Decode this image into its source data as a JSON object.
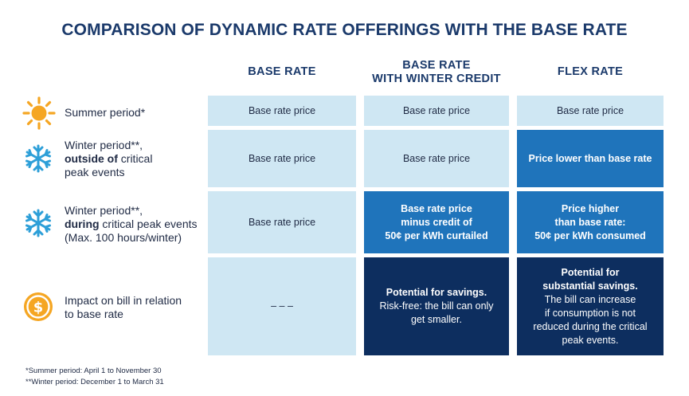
{
  "title": "COMPARISON OF DYNAMIC RATE OFFERINGS WITH THE BASE RATE",
  "columns": {
    "base": "BASE RATE",
    "winter_credit_line1": "BASE RATE",
    "winter_credit_line2": "WITH WINTER CREDIT",
    "flex": "FLEX RATE"
  },
  "rows": {
    "summer": {
      "icon": "sun-icon",
      "label": "Summer period*",
      "base": "Base rate price",
      "winter_credit": "Base rate price",
      "flex": "Base rate price"
    },
    "winter_outside": {
      "icon": "snowflake-icon",
      "label_line1": "Winter period**,",
      "label_bold": "outside of",
      "label_line2_rest": " critical",
      "label_line3": "peak events",
      "base": "Base rate price",
      "winter_credit": "Base rate price",
      "flex": "Price lower than base rate"
    },
    "winter_during": {
      "icon": "snowflake-icon",
      "label_line1": "Winter period**,",
      "label_bold": "during",
      "label_line2_rest": " critical peak events",
      "label_line3": "(Max. 100 hours/winter)",
      "base": "Base rate price",
      "winter_credit_line1": "Base rate price",
      "winter_credit_line2": "minus credit of",
      "winter_credit_line3": "50¢ per kWh curtailed",
      "flex_line1": "Price higher",
      "flex_line2": "than base rate:",
      "flex_line3": "50¢ per kWh consumed"
    },
    "impact": {
      "icon": "dollar-coin-icon",
      "label_line1": "Impact on bill in relation",
      "label_line2": "to base rate",
      "base": "– – –",
      "winter_credit_bold": "Potential for savings.",
      "winter_credit_line2": "Risk-free: the bill can only",
      "winter_credit_line3": "get smaller.",
      "flex_bold1": "Potential for",
      "flex_bold2": "substantial savings.",
      "flex_line3": "The bill can increase",
      "flex_line4": "if consumption is not",
      "flex_line5": "reduced during the critical",
      "flex_line6": "peak events."
    }
  },
  "footnotes": {
    "summer": "*Summer period: April 1 to November 30",
    "winter": "**Winter period: December 1 to March 31"
  },
  "colors": {
    "light_cell": "#cfe7f3",
    "mid_cell": "#1f74bb",
    "dark_cell": "#0d2e5f",
    "title": "#1b3a6b",
    "sun": "#f5a623",
    "snowflake": "#2d9fd8"
  }
}
